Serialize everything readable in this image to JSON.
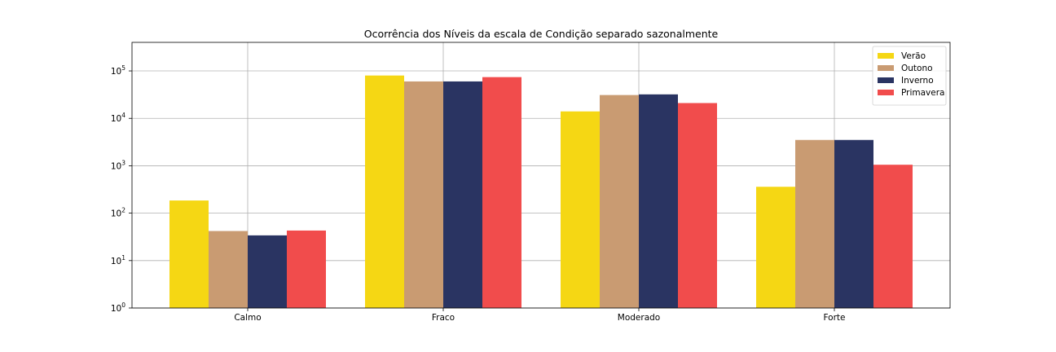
{
  "chart_data": {
    "type": "bar",
    "title": "Ocorrência dos Níveis da escala de Condição separado sazonalmente",
    "xlabel": "",
    "ylabel": "",
    "yscale": "log",
    "ylim": [
      1,
      400000
    ],
    "yticks": [
      1,
      10,
      100,
      1000,
      10000,
      100000
    ],
    "ytick_labels": [
      {
        "base": "10",
        "exp": "0"
      },
      {
        "base": "10",
        "exp": "1"
      },
      {
        "base": "10",
        "exp": "2"
      },
      {
        "base": "10",
        "exp": "3"
      },
      {
        "base": "10",
        "exp": "4"
      },
      {
        "base": "10",
        "exp": "5"
      }
    ],
    "categories": [
      "Calmo",
      "Fraco",
      "Moderado",
      "Forte"
    ],
    "series": [
      {
        "name": "Verão",
        "color": "#f5d714",
        "values": [
          185,
          80000,
          14000,
          360
        ]
      },
      {
        "name": "Outono",
        "color": "#c99b72",
        "values": [
          42,
          60000,
          31000,
          3500
        ]
      },
      {
        "name": "Inverno",
        "color": "#2a3462",
        "values": [
          34,
          60000,
          32000,
          3500
        ]
      },
      {
        "name": "Primavera",
        "color": "#f14c4c",
        "values": [
          43,
          74000,
          21000,
          1050
        ]
      }
    ],
    "grid": true,
    "legend_position": "upper right"
  }
}
